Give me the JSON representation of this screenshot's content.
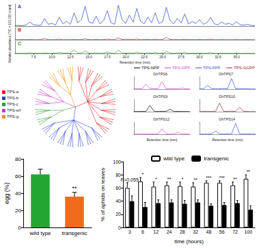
{
  "chart_data": [
    {
      "type": "line",
      "x_label": "Retention time (min)",
      "y_label": "Relative abundance (TIC × 100,000 count)",
      "x": [
        5,
        5.5,
        6,
        6.5,
        7,
        7.5,
        8,
        8.5,
        9,
        9.5,
        10,
        10.5,
        11,
        11.5,
        12,
        12.5,
        13,
        13.5,
        14,
        14.5,
        15,
        15.5,
        16,
        16.5,
        17,
        17.5,
        18,
        18.5,
        19,
        19.5,
        20,
        20.5,
        21,
        21.5,
        22,
        22.5,
        23,
        23.5,
        24,
        24.5,
        25,
        25.5,
        26,
        26.5,
        27,
        27.5,
        28,
        28.5,
        29,
        29.5,
        30,
        30.5,
        31,
        31.5,
        32,
        32.5,
        33,
        33.5,
        34,
        34.5,
        35,
        35.5,
        36,
        36.5,
        37,
        37.5
      ],
      "xlim": [
        5,
        37.5
      ],
      "xticks": [
        7.5,
        {
          "value": 10,
          "label": "10.0"
        },
        12.5,
        {
          "value": 15,
          "label": "15.0"
        },
        17.5,
        {
          "value": 20,
          "label": "20.0"
        },
        22.5,
        {
          "value": 25,
          "label": "25.0"
        },
        27.5,
        {
          "value": 30,
          "label": "30.0"
        },
        32.5,
        {
          "value": 35,
          "label": "35.0"
        }
      ],
      "ylim": [
        0,
        100
      ],
      "tick_labels": "x",
      "series": [
        {
          "name": "A",
          "color": "#1f3fd6",
          "values": [
            2,
            3,
            2,
            5,
            18,
            6,
            4,
            3,
            35,
            8,
            12,
            5,
            40,
            10,
            22,
            8,
            60,
            15,
            30,
            90,
            20,
            12,
            45,
            10,
            25,
            70,
            15,
            8,
            95,
            30,
            12,
            50,
            18,
            80,
            22,
            10,
            40,
            15,
            60,
            12,
            20,
            85,
            25,
            10,
            35,
            14,
            55,
            9,
            20,
            12,
            30,
            8,
            15,
            40,
            10,
            6,
            18,
            8,
            12,
            5,
            20,
            6,
            4,
            8,
            3,
            2
          ]
        },
        {
          "name": "B",
          "color": "#d62728",
          "values": [
            1,
            1,
            2,
            1,
            3,
            1,
            1,
            2,
            10,
            2,
            1,
            2,
            5,
            1,
            2,
            1,
            3,
            1,
            2,
            8,
            2,
            1,
            3,
            1,
            2,
            6,
            1,
            2,
            15,
            3,
            1,
            4,
            2,
            6,
            1,
            2,
            3,
            1,
            5,
            1,
            2,
            20,
            3,
            1,
            2,
            1,
            4,
            1,
            2,
            1,
            3,
            1,
            2,
            5,
            1,
            1,
            2,
            1,
            1,
            1,
            2,
            1,
            1,
            2,
            1,
            1
          ]
        },
        {
          "name": "C",
          "color": "#2ca02c",
          "values": [
            1,
            2,
            1,
            2,
            6,
            1,
            2,
            1,
            4,
            2,
            1,
            3,
            8,
            2,
            4,
            1,
            30,
            3,
            5,
            20,
            3,
            2,
            6,
            1,
            3,
            12,
            2,
            1,
            25,
            4,
            2,
            5,
            2,
            10,
            3,
            1,
            5,
            2,
            8,
            1,
            3,
            15,
            4,
            1,
            6,
            2,
            9,
            1,
            3,
            2,
            5,
            1,
            2,
            7,
            1,
            1,
            3,
            1,
            2,
            1,
            4,
            1,
            1,
            2,
            1,
            1
          ]
        }
      ]
    },
    {
      "type": "tree",
      "clades": [
        {
          "name": "TPS-a",
          "color": "#e41a1c",
          "leaves": 27
        },
        {
          "name": "TPS-b",
          "color": "#2a3fd6",
          "leaves": 21
        },
        {
          "name": "TPS-c",
          "color": "#2ca02c",
          "leaves": 6
        },
        {
          "name": "TPS-e/f",
          "color": "#cc33cc",
          "leaves": 9
        },
        {
          "name": "TPS-g",
          "color": "#ff8c00",
          "leaves": 9
        }
      ]
    },
    {
      "type": "line",
      "x_label": "Retention time (min)",
      "x": [
        10,
        11,
        12,
        13,
        14,
        15,
        16,
        17,
        18,
        19,
        20,
        21,
        22,
        23,
        24
      ],
      "xlim": [
        10,
        24
      ],
      "ylim": [
        0,
        100
      ],
      "tick_labels": false,
      "substrates": [
        {
          "name": "TPS-NPP",
          "color": "#000000"
        },
        {
          "name": "TPS-GPP",
          "color": "#e040e0"
        },
        {
          "name": "TPS-FPP",
          "color": "#3050e0"
        },
        {
          "name": "TPS-GGPP",
          "color": "#a0202a"
        }
      ],
      "series": [
        {
          "name": "GhTPS6",
          "color": "#e040e0",
          "values": [
            2,
            3,
            2,
            40,
            5,
            3,
            2,
            60,
            4,
            2,
            3,
            2,
            8,
            2,
            1
          ]
        },
        {
          "name": "GhTPS7",
          "color": "#3050e0",
          "values": [
            1,
            2,
            30,
            4,
            2,
            2,
            5,
            2,
            85,
            3,
            2,
            4,
            2,
            1,
            1
          ]
        },
        {
          "name": "GhTPS9",
          "color": "#000000",
          "values": [
            2,
            2,
            3,
            2,
            50,
            4,
            2,
            3,
            2,
            20,
            2,
            3,
            2,
            2,
            1
          ]
        },
        {
          "name": "GhTPS10",
          "color": "#a0202a",
          "values": [
            1,
            3,
            2,
            2,
            3,
            70,
            3,
            2,
            4,
            2,
            35,
            3,
            2,
            1,
            1
          ]
        },
        {
          "name": "GhTPS12",
          "color": "#e040e0",
          "values": [
            2,
            2,
            5,
            2,
            3,
            2,
            2,
            45,
            3,
            2,
            3,
            15,
            2,
            2,
            1
          ]
        },
        {
          "name": "GhTPS14",
          "color": "#3050e0",
          "values": [
            1,
            2,
            2,
            3,
            25,
            2,
            2,
            3,
            2,
            90,
            3,
            2,
            4,
            2,
            1
          ]
        }
      ]
    },
    {
      "type": "bar",
      "y_label": "egg (%)",
      "categories": [
        "wild type",
        "transgenic"
      ],
      "values": [
        62,
        36
      ],
      "errors": [
        6,
        5
      ],
      "colors": [
        "#22a832",
        "#f26b1d"
      ],
      "annotations": [
        null,
        "**"
      ],
      "ylim": [
        0,
        80
      ],
      "yticks": [
        0,
        20,
        40,
        60,
        80
      ]
    },
    {
      "type": "bar",
      "x_label": "time (hours)",
      "y_label": "% of aphids on leaves",
      "categories": [
        "3",
        "6",
        "12",
        "24",
        "28",
        "32",
        "48",
        "56",
        "72",
        "100"
      ],
      "legend": "top",
      "series": [
        {
          "name": "wild type",
          "color": "#ffffff",
          "values": [
            60,
            70,
            62,
            64,
            63,
            62,
            68,
            68,
            64,
            74
          ],
          "errors": [
            8,
            6,
            7,
            5,
            6,
            6,
            3,
            3,
            5,
            6
          ]
        },
        {
          "name": "transgenic",
          "color": "#000000",
          "values": [
            40,
            31,
            37,
            38,
            36,
            38,
            33,
            34,
            37,
            27
          ],
          "errors": [
            8,
            7,
            5,
            4,
            5,
            4,
            3,
            4,
            4,
            6
          ]
        }
      ],
      "annotations": [
        "P=0.055",
        "*",
        "*",
        "**",
        "*",
        "**",
        "***",
        "***",
        "**",
        "**"
      ],
      "ylim": [
        0,
        100
      ],
      "yticks": [
        0,
        20,
        40,
        60,
        80,
        100
      ]
    }
  ]
}
